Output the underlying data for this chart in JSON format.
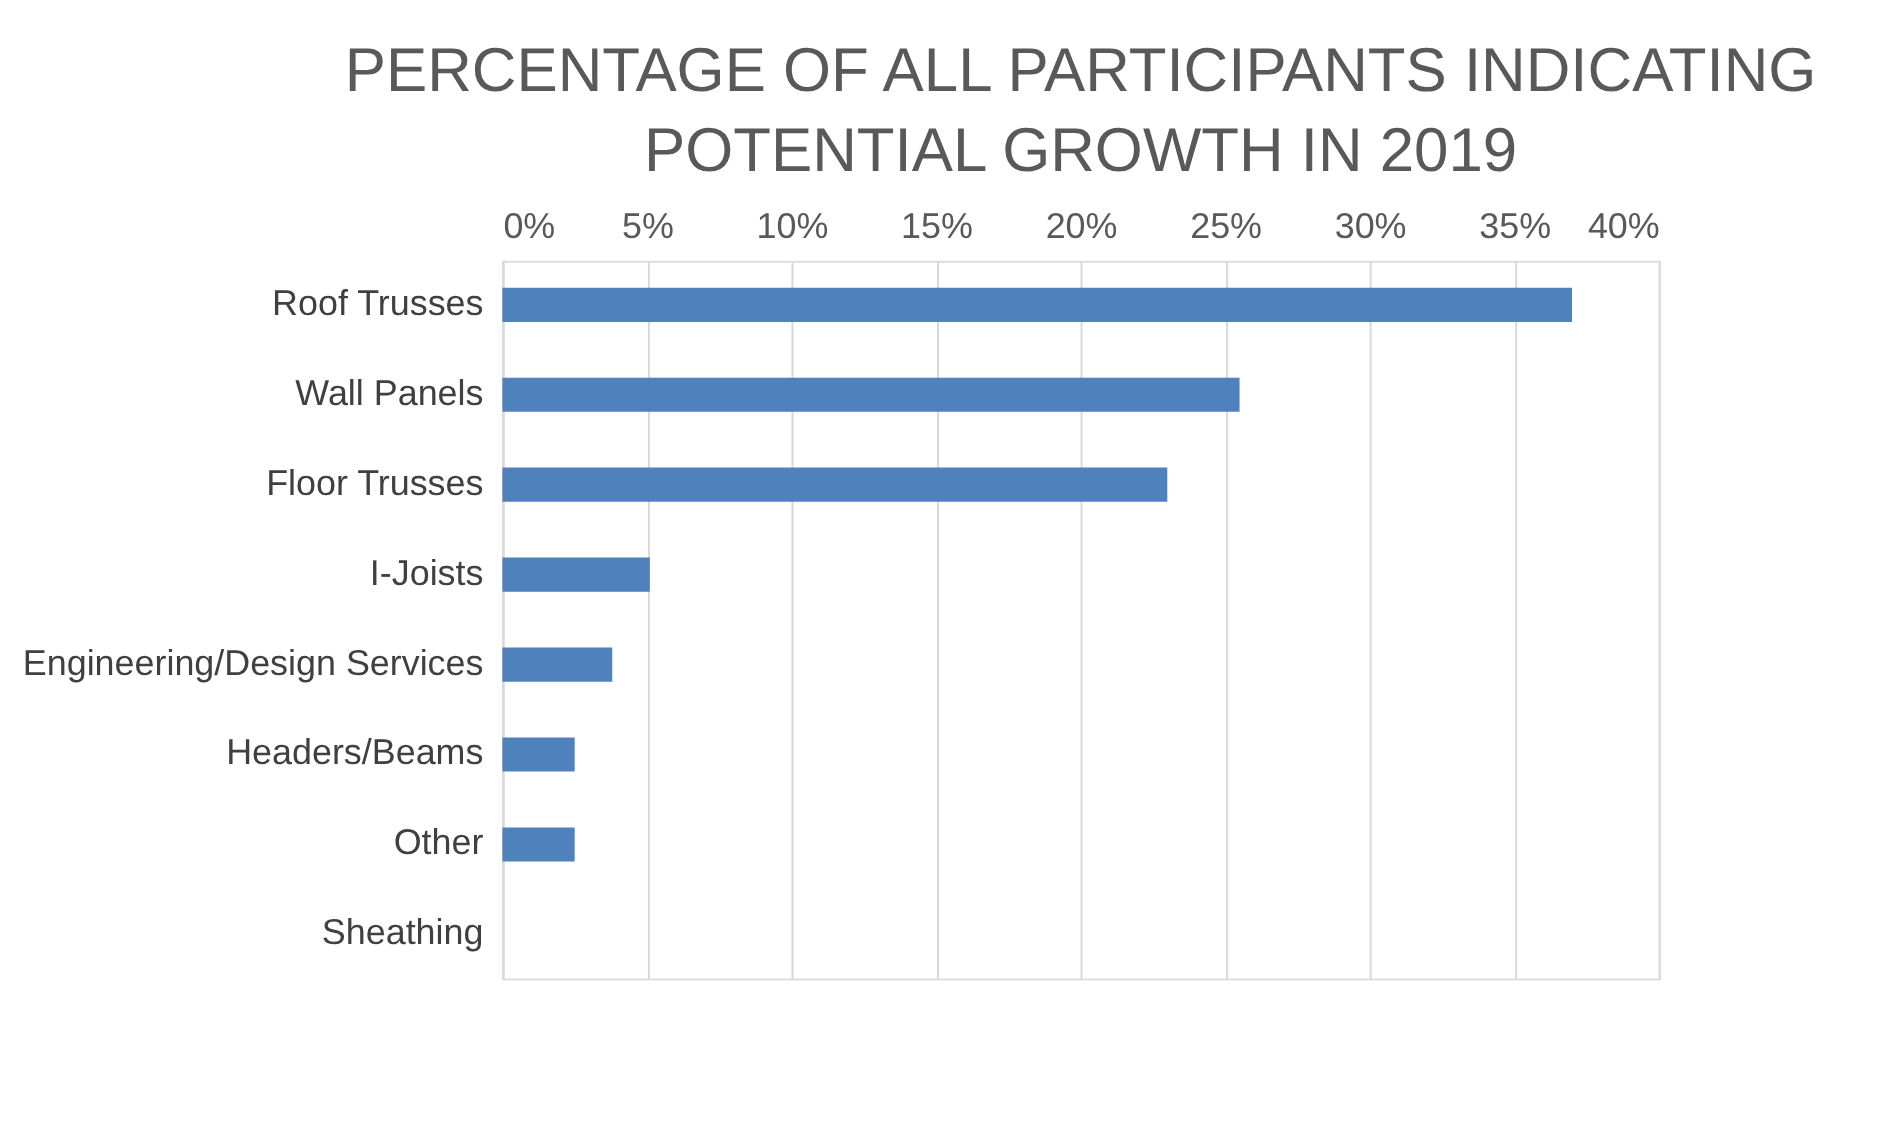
{
  "chart_data": {
    "type": "bar",
    "orientation": "horizontal",
    "title": "PERCENTAGE OF ALL PARTICIPANTS INDICATING POTENTIAL GROWTH IN 2019",
    "categories": [
      "Roof Trusses",
      "Wall Panels",
      "Floor Trusses",
      "I-Joists",
      "Engineering/Design Services",
      "Headers/Beams",
      "Other",
      "Sheathing"
    ],
    "values": [
      37.0,
      25.5,
      23.0,
      5.1,
      3.8,
      2.5,
      2.5,
      0
    ],
    "color": "#4f81bd",
    "xlim": [
      0,
      40
    ],
    "xticks": [
      {
        "value": 0,
        "label": "0%"
      },
      {
        "value": 5,
        "label": "5%"
      },
      {
        "value": 10,
        "label": "10%"
      },
      {
        "value": 15,
        "label": "15%"
      },
      {
        "value": 20,
        "label": "20%"
      },
      {
        "value": 25,
        "label": "25%"
      },
      {
        "value": 30,
        "label": "30%"
      },
      {
        "value": 35,
        "label": "35%"
      },
      {
        "value": 40,
        "label": "40%"
      }
    ],
    "grid": "x"
  }
}
